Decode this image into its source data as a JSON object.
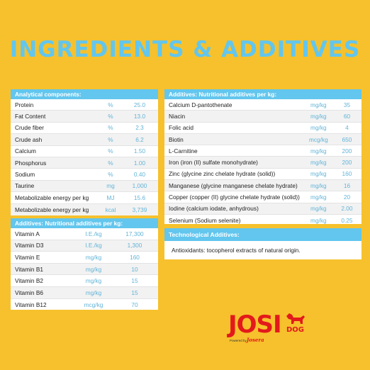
{
  "title": "INGREDIENTS & ADDITIVES",
  "analytical": {
    "header": "Analytical components:",
    "rows": [
      {
        "name": "Protein",
        "unit": "%",
        "value": "25.0"
      },
      {
        "name": "Fat Content",
        "unit": "%",
        "value": "13.0"
      },
      {
        "name": "Crude fiber",
        "unit": "%",
        "value": "2.3"
      },
      {
        "name": "Crude ash",
        "unit": "%",
        "value": "6.2"
      },
      {
        "name": "Calcium",
        "unit": "%",
        "value": "1.50"
      },
      {
        "name": "Phosphorus",
        "unit": "%",
        "value": "1.00"
      },
      {
        "name": "Sodium",
        "unit": "%",
        "value": "0.40"
      },
      {
        "name": "Taurine",
        "unit": "mg",
        "value": "1,000"
      },
      {
        "name": "Metabolizable energy per kg",
        "unit": "MJ",
        "value": "15.6"
      },
      {
        "name": "Metabolizable energy per kg",
        "unit": "kcal",
        "value": "3,739"
      }
    ]
  },
  "vitamins": {
    "header": "Additives: Nutritional additives per kg:",
    "rows": [
      {
        "name": "Vitamin A",
        "unit": "I.E./kg",
        "value": "17,300"
      },
      {
        "name": "Vitamin D3",
        "unit": "I.E./kg",
        "value": "1,300"
      },
      {
        "name": "Vitamin E",
        "unit": "mg/kg",
        "value": "160"
      },
      {
        "name": "Vitamin B1",
        "unit": "mg/kg",
        "value": "10"
      },
      {
        "name": "Vitamin B2",
        "unit": "mg/kg",
        "value": "15"
      },
      {
        "name": "Vitamin B6",
        "unit": "mg/kg",
        "value": "15"
      },
      {
        "name": "Vitamin B12",
        "unit": "mcg/kg",
        "value": "70"
      }
    ]
  },
  "minerals": {
    "header": "Additives: Nutritional additives per kg:",
    "rows": [
      {
        "name": "Calcium D-pantothenate",
        "unit": "mg/kg",
        "value": "35"
      },
      {
        "name": "Niacin",
        "unit": "mg/kg",
        "value": "60"
      },
      {
        "name": "Folic acid",
        "unit": "mg/kg",
        "value": "4"
      },
      {
        "name": "Biotin",
        "unit": "mcg/kg",
        "value": "650"
      },
      {
        "name": "L-Carnitine",
        "unit": "mg/kg",
        "value": "200"
      },
      {
        "name": "Iron (iron (II) sulfate monohydrate)",
        "unit": "mg/kg",
        "value": "200"
      },
      {
        "name": "Zinc (glycine zinc chelate hydrate (solid))",
        "unit": "mg/kg",
        "value": "160"
      },
      {
        "name": "Manganese (glycine manganese chelate hydrate)",
        "unit": "mg/kg",
        "value": "16"
      },
      {
        "name": "Copper (copper (II) glycine chelate hydrate (solid))",
        "unit": "mg/kg",
        "value": "20"
      },
      {
        "name": "Iodine (calcium iodate, anhydrous)",
        "unit": "mg/kg",
        "value": "2.00"
      },
      {
        "name": "Selenium (Sodium selenite)",
        "unit": "mg/kg",
        "value": "0.25"
      }
    ]
  },
  "technological": {
    "header": "Technological Additives:",
    "text": "Antioxidants: tocopherol extracts of natural origin."
  },
  "logo": {
    "josi": "JOSI",
    "dog": "DOG",
    "powered": "Powered by",
    "josera": "Josera"
  },
  "colors": {
    "background": "#F6C12C",
    "accent": "#62C6EE",
    "brand": "#E3191B"
  }
}
